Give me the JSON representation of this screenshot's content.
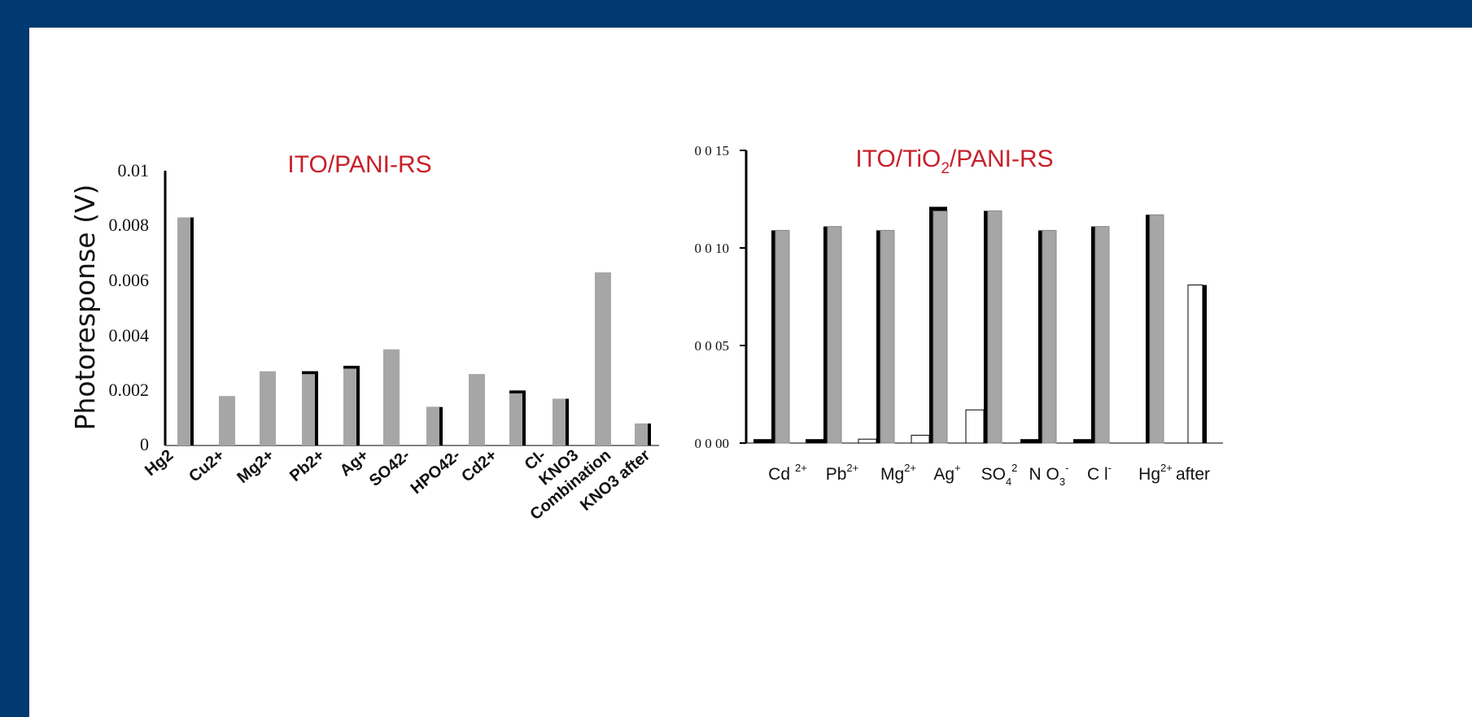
{
  "colors": {
    "frame": "#003a70",
    "title": "#c8202a",
    "gray": "#a6a6a6",
    "black": "#000000",
    "white": "#ffffff"
  },
  "chart_data": [
    {
      "type": "bar",
      "title": "ITO/PANI-RS",
      "ylabel": "Photoresponse (V)",
      "xlabel": "",
      "ylim": [
        0,
        0.01
      ],
      "yticks": [
        0,
        0.002,
        0.004,
        0.006,
        0.008,
        0.01
      ],
      "ytick_labels": [
        "0",
        "0.002",
        "0.004",
        "0.006",
        "0.008",
        "0.01"
      ],
      "grid": false,
      "legend": "none",
      "categories": [
        "Hg2+",
        "Cu2+",
        "Mg2+",
        "Pb2+",
        "Ag+",
        "SO42-",
        "HPO42-",
        "Cd2+",
        "Cl-",
        "KNO3",
        "Combination",
        "KNO3 after"
      ],
      "series": [
        {
          "color": "#000000",
          "values": [
            0.0083,
            0,
            0,
            0.0027,
            0.0029,
            0,
            0.0014,
            0,
            0.002,
            0.0017,
            0,
            0.0008
          ]
        },
        {
          "color": "#a6a6a6",
          "values": [
            0.0083,
            0.0018,
            0.0027,
            0.0026,
            0.0028,
            0.0035,
            0.0014,
            0.0026,
            0.0019,
            0.0017,
            0.0063,
            0.0008
          ]
        }
      ]
    },
    {
      "type": "bar",
      "title": "ITO/TiO2/PANI-RS",
      "ylabel": "",
      "xlabel": "",
      "ylim": [
        0,
        0.015
      ],
      "yticks": [
        0,
        0.005,
        0.01,
        0.015
      ],
      "ytick_labels": [
        "0 0 00",
        "0 0 05",
        "0 0 10",
        "0 0 15"
      ],
      "grid": false,
      "legend": "none",
      "categories": [
        "Cd 2+",
        "Pb2+",
        "Mg2+",
        "Ag+",
        "SO4 2",
        "NO3-",
        "Cl-",
        "Hg2+",
        "after"
      ],
      "series": [
        {
          "color": "#000000",
          "values": [
            0.0002,
            0.0002,
            0,
            0,
            0,
            0.0002,
            0.0002,
            0,
            0.0081
          ]
        },
        {
          "color": "#ffffff",
          "values": [
            0,
            0,
            0.0002,
            0.0004,
            0.0017,
            0,
            0,
            0,
            0.0081
          ]
        },
        {
          "color": "#a6a6a6",
          "values": [
            0.0109,
            0.0111,
            0.0109,
            0.0119,
            0.0119,
            0.0109,
            0.0111,
            0.0117,
            0
          ]
        }
      ]
    }
  ],
  "left": {
    "title": "ITO/PANI-RS",
    "ylabel": "Photoresponse (V)",
    "ticks": [
      "0",
      "0.002",
      "0.004",
      "0.006",
      "0.008",
      "0.01"
    ],
    "cats": [
      "Hg2",
      "Cu2+",
      "Mg2+",
      "Pb2+",
      "Ag+",
      "SO42-",
      "HPO42-",
      "Cd2+",
      "Cl-",
      "KNO3",
      "Combination",
      "KNO3 after"
    ]
  },
  "right": {
    "title": "ITO/TiO",
    "title_sub": "2",
    "title_end": "/PANI-RS",
    "ticks": [
      "0 0 00",
      "0 0 05",
      "0 0 10",
      "0 0 15"
    ],
    "cats": [
      "Cd",
      "Pb",
      "Mg",
      "Ag",
      "SO",
      "N O",
      "C l",
      "Hg",
      "after"
    ],
    "sups": [
      "2+",
      "2+",
      "2+",
      "+",
      "2",
      "-",
      "-",
      "2+",
      ""
    ],
    "subs": [
      "",
      "",
      "",
      "",
      "4",
      "3",
      "",
      "",
      ""
    ]
  }
}
